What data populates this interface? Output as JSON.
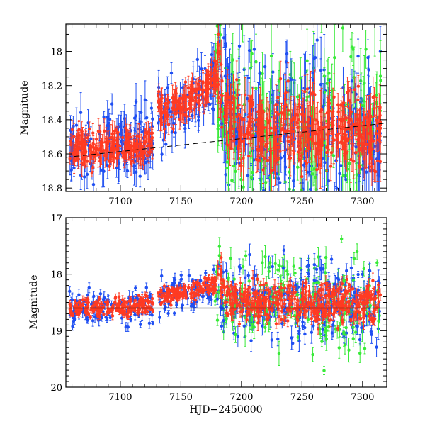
{
  "chart_data": [
    {
      "type": "scatter",
      "title": "",
      "xlabel": "",
      "ylabel": "Magnitude",
      "xlim": [
        7055,
        7320
      ],
      "ylim": [
        18.82,
        17.84
      ],
      "y_inverted": true,
      "xticks": [
        7100,
        7150,
        7200,
        7250,
        7300
      ],
      "yticks": [
        18,
        18.2,
        18.4,
        18.6,
        18.8
      ],
      "grid": false,
      "legend": "none",
      "reference_line": {
        "style": "dashed",
        "x": [
          7055,
          7320
        ],
        "y": [
          18.62,
          18.42
        ]
      },
      "series": [
        {
          "color": "#1f4ff2",
          "description": "blue points"
        },
        {
          "color": "#38ea38",
          "description": "green points"
        },
        {
          "color": "#ff3b22",
          "description": "red points"
        }
      ],
      "trend": [
        [
          7058,
          18.57
        ],
        [
          7070,
          18.56
        ],
        [
          7080,
          18.58
        ],
        [
          7090,
          18.56
        ],
        [
          7100,
          18.56
        ],
        [
          7105,
          18.57
        ],
        [
          7110,
          18.55
        ],
        [
          7115,
          18.55
        ],
        [
          7120,
          18.54
        ],
        [
          7125,
          18.55
        ],
        [
          7130,
          18.36
        ],
        [
          7140,
          18.35
        ],
        [
          7150,
          18.32
        ],
        [
          7160,
          18.27
        ],
        [
          7170,
          18.22
        ],
        [
          7178,
          18.14
        ],
        [
          7182,
          18.05
        ],
        [
          7185,
          18.35
        ],
        [
          7195,
          18.43
        ],
        [
          7205,
          18.47
        ],
        [
          7215,
          18.46
        ],
        [
          7225,
          18.47
        ],
        [
          7235,
          18.44
        ],
        [
          7245,
          18.47
        ],
        [
          7255,
          18.47
        ],
        [
          7265,
          18.48
        ],
        [
          7275,
          18.5
        ],
        [
          7285,
          18.47
        ],
        [
          7295,
          18.46
        ],
        [
          7305,
          18.5
        ],
        [
          7315,
          18.45
        ]
      ]
    },
    {
      "type": "scatter",
      "title": "",
      "xlabel": "HJD−2450000",
      "ylabel": "Magnitude",
      "xlim": [
        7055,
        7320
      ],
      "ylim": [
        20,
        17
      ],
      "y_inverted": true,
      "xticks": [
        7100,
        7150,
        7200,
        7250,
        7300
      ],
      "yticks": [
        17,
        18,
        19,
        20
      ],
      "grid": false,
      "legend": "none",
      "reference_line": {
        "style": "solid",
        "x": [
          7055,
          7320
        ],
        "y": [
          18.6,
          18.6
        ]
      },
      "series": [
        {
          "color": "#1f4ff2",
          "description": "blue points"
        },
        {
          "color": "#38ea38",
          "description": "green points"
        },
        {
          "color": "#ff3b22",
          "description": "red points"
        }
      ],
      "trend": [
        [
          7058,
          18.62
        ],
        [
          7070,
          18.6
        ],
        [
          7080,
          18.62
        ],
        [
          7090,
          18.58
        ],
        [
          7100,
          18.58
        ],
        [
          7105,
          18.6
        ],
        [
          7110,
          18.55
        ],
        [
          7115,
          18.56
        ],
        [
          7120,
          18.54
        ],
        [
          7125,
          18.55
        ],
        [
          7130,
          18.4
        ],
        [
          7140,
          18.38
        ],
        [
          7150,
          18.35
        ],
        [
          7160,
          18.3
        ],
        [
          7170,
          18.22
        ],
        [
          7178,
          18.15
        ],
        [
          7182,
          18.05
        ],
        [
          7185,
          18.4
        ],
        [
          7195,
          18.45
        ],
        [
          7205,
          18.5
        ],
        [
          7215,
          18.5
        ],
        [
          7225,
          18.5
        ],
        [
          7235,
          18.48
        ],
        [
          7245,
          18.5
        ],
        [
          7255,
          18.52
        ],
        [
          7265,
          18.5
        ],
        [
          7275,
          18.52
        ],
        [
          7285,
          18.5
        ],
        [
          7295,
          18.5
        ],
        [
          7305,
          18.52
        ],
        [
          7315,
          18.5
        ]
      ]
    }
  ]
}
